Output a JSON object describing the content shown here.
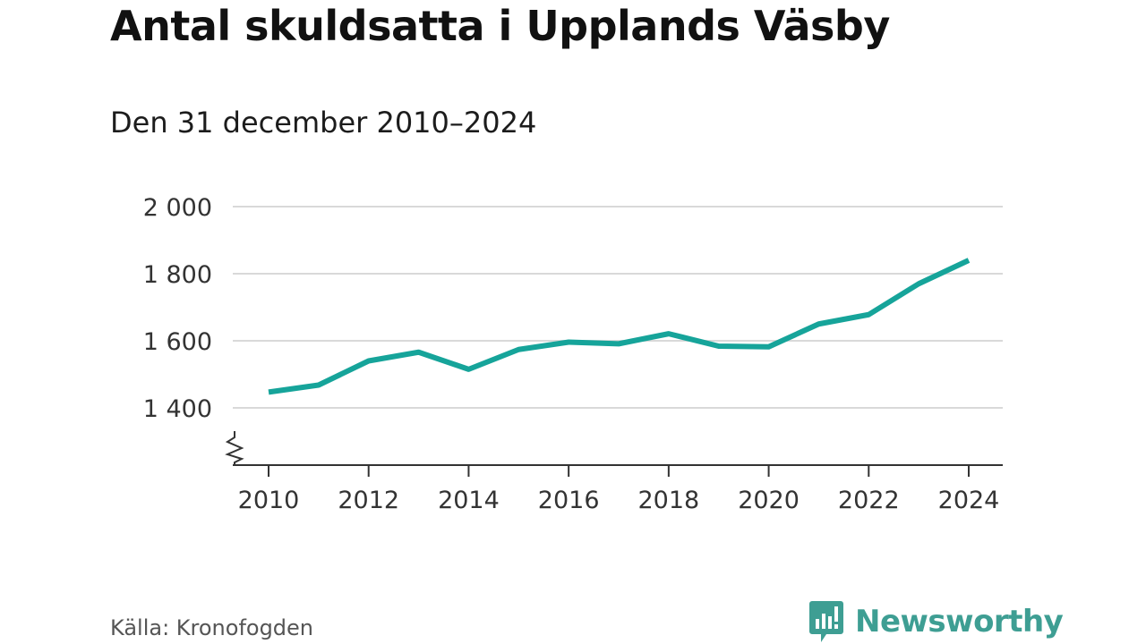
{
  "header": {
    "title": "Antal skuldsatta i Upplands Väsby",
    "subtitle": "Den 31 december 2010–2024"
  },
  "footer": {
    "source": "Källa: Kronofogden",
    "brand": "Newsworthy"
  },
  "colors": {
    "line": "#16a49a",
    "brand": "#3e9e93",
    "grid": "#d9d9d9",
    "axis": "#333333"
  },
  "chart_data": {
    "type": "line",
    "title": "Antal skuldsatta i Upplands Väsby",
    "subtitle": "Den 31 december 2010–2024",
    "xlabel": "",
    "ylabel": "",
    "x": [
      2010,
      2011,
      2012,
      2013,
      2014,
      2015,
      2016,
      2017,
      2018,
      2019,
      2020,
      2021,
      2022,
      2023,
      2024
    ],
    "series": [
      {
        "name": "Antal skuldsatta",
        "values": [
          1447,
          1468,
          1540,
          1566,
          1515,
          1574,
          1596,
          1591,
          1621,
          1584,
          1582,
          1650,
          1678,
          1770,
          1840
        ]
      }
    ],
    "ylim": [
      1230,
      2000
    ],
    "yticks": [
      1400,
      1600,
      1800,
      2000
    ],
    "yticklabels": [
      "1 400",
      "1 600",
      "1 800",
      "2 000"
    ],
    "xticks": [
      2010,
      2012,
      2014,
      2016,
      2018,
      2020,
      2022,
      2024
    ],
    "xticklabels": [
      "2010",
      "2012",
      "2014",
      "2016",
      "2018",
      "2020",
      "2022",
      "2024"
    ],
    "grid": true,
    "axis_break": true,
    "legend": "none"
  }
}
